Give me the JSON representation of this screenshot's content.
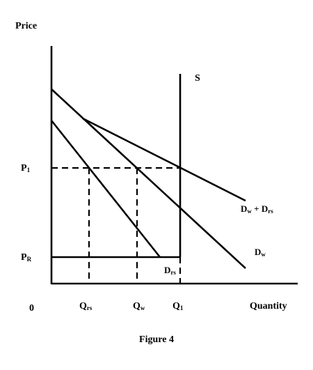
{
  "figure": {
    "caption": "Figure 4"
  },
  "axes": {
    "y_label": "Price",
    "x_label": "Quantity",
    "origin_label": "0"
  },
  "price_labels": {
    "p1_main": "P",
    "p1_sub": "1",
    "pr_main": "P",
    "pr_sub": "R"
  },
  "quantity_labels": {
    "qrs_main": "Q",
    "qrs_sub": "rs",
    "qw_main": "Q",
    "qw_sub": "w",
    "q1_main": "Q",
    "q1_sub": "1"
  },
  "curve_labels": {
    "supply": "S",
    "dw_main": "D",
    "dw_sub": "w",
    "drs_main": "D",
    "drs_sub": "rs",
    "sum_d1": "D",
    "sum_d1_sub": "w",
    "sum_plus": " + ",
    "sum_d2": "D",
    "sum_d2_sub": "rs"
  }
}
